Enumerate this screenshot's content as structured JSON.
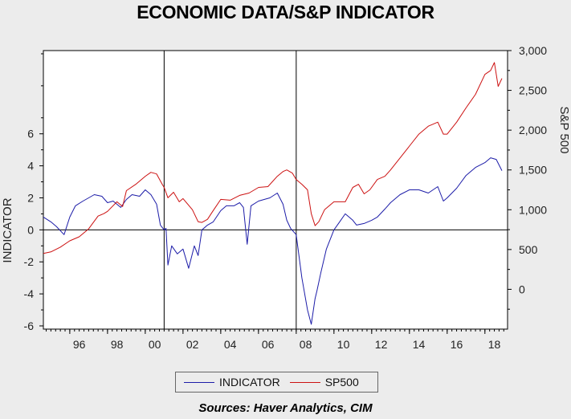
{
  "chart_data": {
    "type": "line",
    "title": "ECONOMIC DATA/S&P INDICATOR",
    "xlabel": "",
    "ylabel_left": "INDICATOR",
    "ylabel_right": "S&P 500",
    "x_range": [
      1994.6,
      2019.2
    ],
    "x_tick_labels": [
      "96",
      "98",
      "00",
      "02",
      "04",
      "06",
      "08",
      "10",
      "12",
      "14",
      "16",
      "18"
    ],
    "x_tick_values": [
      1996,
      1998,
      2000,
      2002,
      2004,
      2006,
      2008,
      2010,
      2012,
      2014,
      2016,
      2018
    ],
    "left_axis": {
      "range": [
        -6.2,
        11.2
      ],
      "ticks": [
        -6,
        -4,
        -2,
        0,
        2,
        4,
        6
      ],
      "tick_labels": [
        "-6",
        "-4",
        "-2",
        "0",
        "2",
        "4",
        "6"
      ]
    },
    "right_axis": {
      "range": [
        -500,
        3000
      ],
      "ticks": [
        0,
        500,
        1000,
        1500,
        2000,
        2500,
        3000
      ],
      "tick_labels": [
        "0",
        "500",
        "1,000",
        "1,500",
        "2,000",
        "2,500",
        "3,000"
      ]
    },
    "reference_lines": {
      "horizontal_left_value": 0,
      "vertical_x": [
        2001.0,
        2008.0
      ]
    },
    "series": [
      {
        "name": "INDICATOR",
        "axis": "left",
        "color": "#1c1ca8",
        "x": [
          1994.6,
          1995.0,
          1995.3,
          1995.7,
          1996.0,
          1996.3,
          1996.7,
          1997.0,
          1997.3,
          1997.7,
          1998.0,
          1998.3,
          1998.7,
          1999.0,
          1999.3,
          1999.7,
          2000.0,
          2000.3,
          2000.6,
          2000.8,
          2001.0,
          2001.1,
          2001.2,
          2001.4,
          2001.7,
          2002.0,
          2002.3,
          2002.6,
          2002.8,
          2003.0,
          2003.3,
          2003.6,
          2004.0,
          2004.3,
          2004.7,
          2005.0,
          2005.2,
          2005.4,
          2005.6,
          2006.0,
          2006.3,
          2006.6,
          2007.0,
          2007.3,
          2007.5,
          2007.7,
          2008.0,
          2008.3,
          2008.6,
          2008.8,
          2009.0,
          2009.1,
          2009.3,
          2009.6,
          2010.0,
          2010.3,
          2010.6,
          2011.0,
          2011.2,
          2011.6,
          2012.0,
          2012.3,
          2012.7,
          2013.0,
          2013.5,
          2014.0,
          2014.5,
          2015.0,
          2015.5,
          2015.8,
          2016.0,
          2016.5,
          2017.0,
          2017.5,
          2018.0,
          2018.3,
          2018.6,
          2018.9
        ],
        "values": [
          0.8,
          0.5,
          0.2,
          -0.3,
          0.8,
          1.5,
          1.8,
          2.0,
          2.2,
          2.1,
          1.7,
          1.8,
          1.4,
          1.9,
          2.2,
          2.1,
          2.5,
          2.2,
          1.6,
          0.3,
          0.0,
          0.1,
          -2.2,
          -1.0,
          -1.5,
          -1.2,
          -2.4,
          -1.0,
          -1.6,
          0.0,
          0.3,
          0.5,
          1.2,
          1.5,
          1.5,
          1.7,
          1.4,
          -0.9,
          1.5,
          1.8,
          1.9,
          2.0,
          2.3,
          1.6,
          0.6,
          0.1,
          -0.3,
          -3.0,
          -5.0,
          -5.9,
          -4.3,
          -3.8,
          -2.7,
          -1.2,
          0.0,
          0.5,
          1.0,
          0.6,
          0.3,
          0.4,
          0.6,
          0.8,
          1.3,
          1.7,
          2.2,
          2.5,
          2.5,
          2.3,
          2.7,
          1.8,
          2.0,
          2.6,
          3.4,
          3.9,
          4.2,
          4.5,
          4.4,
          3.7
        ]
      },
      {
        "name": "SP500",
        "axis": "right",
        "color": "#cc1111",
        "x": [
          1994.6,
          1995.0,
          1995.5,
          1996.0,
          1996.5,
          1997.0,
          1997.5,
          1997.8,
          1998.0,
          1998.5,
          1998.8,
          1999.0,
          1999.5,
          2000.0,
          2000.3,
          2000.6,
          2000.9,
          2001.0,
          2001.2,
          2001.5,
          2001.8,
          2002.0,
          2002.5,
          2002.8,
          2003.0,
          2003.3,
          2003.6,
          2004.0,
          2004.5,
          2005.0,
          2005.5,
          2006.0,
          2006.5,
          2007.0,
          2007.3,
          2007.5,
          2007.8,
          2008.0,
          2008.3,
          2008.6,
          2008.8,
          2009.0,
          2009.2,
          2009.5,
          2010.0,
          2010.3,
          2010.6,
          2011.0,
          2011.3,
          2011.6,
          2011.9,
          2012.3,
          2012.7,
          2013.0,
          2013.5,
          2014.0,
          2014.5,
          2015.0,
          2015.5,
          2015.8,
          2016.0,
          2016.5,
          2017.0,
          2017.5,
          2018.0,
          2018.3,
          2018.5,
          2018.7,
          2018.9
        ],
        "values": [
          450,
          470,
          530,
          610,
          660,
          760,
          920,
          950,
          980,
          1100,
          1040,
          1240,
          1320,
          1420,
          1470,
          1450,
          1320,
          1280,
          1150,
          1220,
          1100,
          1140,
          1000,
          850,
          840,
          880,
          990,
          1130,
          1120,
          1180,
          1210,
          1280,
          1290,
          1420,
          1480,
          1500,
          1460,
          1380,
          1320,
          1250,
          950,
          800,
          850,
          1000,
          1100,
          1100,
          1100,
          1280,
          1320,
          1200,
          1250,
          1380,
          1420,
          1500,
          1650,
          1800,
          1950,
          2050,
          2100,
          1950,
          1950,
          2100,
          2280,
          2450,
          2700,
          2750,
          2850,
          2550,
          2650
        ]
      }
    ],
    "legend_entries": [
      "INDICATOR",
      "SP500"
    ],
    "legend_position": "bottom-center"
  },
  "footer": {
    "sources": "Sources:  Haver Analytics, CIM"
  }
}
